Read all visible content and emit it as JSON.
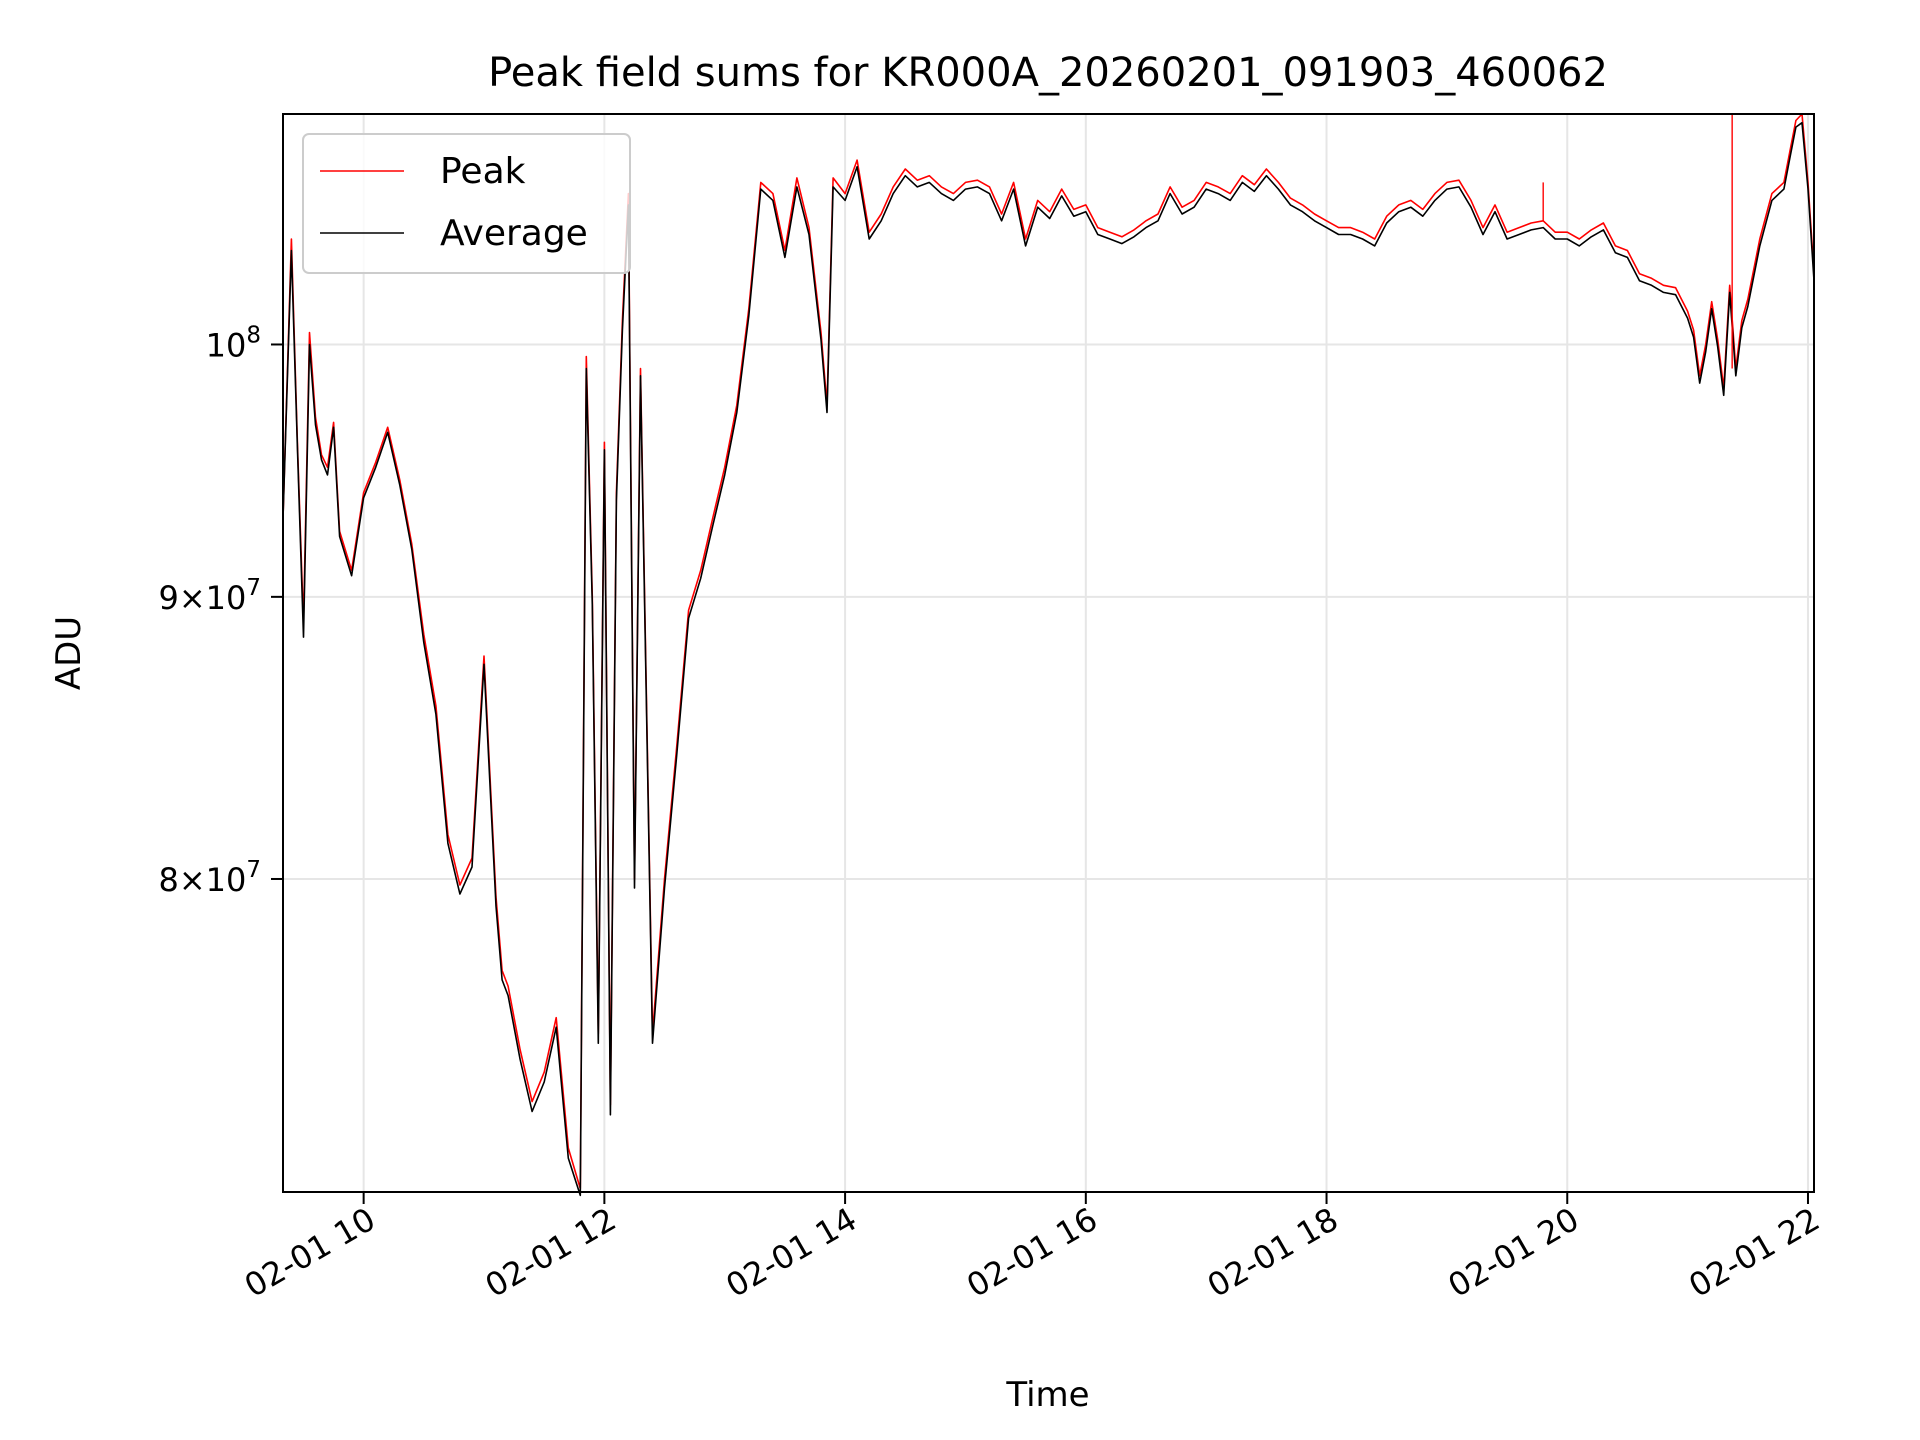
{
  "chart_data": {
    "type": "line",
    "title": "Peak field sums for KR000A_20260201_091903_460062",
    "xlabel": "Time",
    "ylabel": "ADU",
    "yscale": "log",
    "xlim_hours": [
      9.33,
      22.05
    ],
    "ylim": [
      70200000,
      110100000
    ],
    "grid": true,
    "legend_position": "upper-left",
    "x_ticks": [
      {
        "hour": 10,
        "label": "02-01 10"
      },
      {
        "hour": 12,
        "label": "02-01 12"
      },
      {
        "hour": 14,
        "label": "02-01 14"
      },
      {
        "hour": 16,
        "label": "02-01 16"
      },
      {
        "hour": 18,
        "label": "02-01 18"
      },
      {
        "hour": 20,
        "label": "02-01 20"
      },
      {
        "hour": 22,
        "label": "02-01 22"
      }
    ],
    "y_ticks": [
      {
        "value": 80000000,
        "base": "8",
        "exp": "7"
      },
      {
        "value": 90000000,
        "base": "9",
        "exp": "7"
      },
      {
        "value": 100000000,
        "base": "10",
        "exp": "8"
      }
    ],
    "x_hours": [
      9.33,
      9.4,
      9.45,
      9.5,
      9.55,
      9.6,
      9.65,
      9.7,
      9.75,
      9.8,
      9.9,
      10.0,
      10.1,
      10.2,
      10.3,
      10.4,
      10.5,
      10.6,
      10.7,
      10.8,
      10.9,
      11.0,
      11.1,
      11.15,
      11.2,
      11.3,
      11.4,
      11.5,
      11.6,
      11.7,
      11.8,
      11.85,
      11.9,
      11.95,
      12.0,
      12.05,
      12.1,
      12.15,
      12.2,
      12.25,
      12.3,
      12.4,
      12.5,
      12.6,
      12.7,
      12.8,
      12.9,
      13.0,
      13.1,
      13.2,
      13.3,
      13.4,
      13.5,
      13.6,
      13.7,
      13.8,
      13.85,
      13.9,
      14.0,
      14.1,
      14.2,
      14.3,
      14.4,
      14.5,
      14.6,
      14.7,
      14.8,
      14.9,
      15.0,
      15.1,
      15.2,
      15.3,
      15.4,
      15.5,
      15.6,
      15.7,
      15.8,
      15.9,
      16.0,
      16.1,
      16.2,
      16.3,
      16.4,
      16.5,
      16.6,
      16.7,
      16.8,
      16.9,
      17.0,
      17.1,
      17.2,
      17.3,
      17.4,
      17.5,
      17.6,
      17.7,
      17.8,
      17.9,
      18.0,
      18.1,
      18.2,
      18.3,
      18.4,
      18.5,
      18.6,
      18.7,
      18.8,
      18.9,
      19.0,
      19.1,
      19.2,
      19.3,
      19.4,
      19.5,
      19.6,
      19.7,
      19.8,
      19.9,
      20.0,
      20.1,
      20.2,
      20.3,
      20.4,
      20.5,
      20.6,
      20.7,
      20.8,
      20.9,
      21.0,
      21.05,
      21.1,
      21.15,
      21.2,
      21.25,
      21.3,
      21.35,
      21.4,
      21.45,
      21.5,
      21.6,
      21.7,
      21.8,
      21.85,
      21.9,
      21.95,
      22.0,
      22.05
    ],
    "series": [
      {
        "name": "Peak",
        "color": "#ff0000",
        "values": [
          93000000,
          104500000,
          96000000,
          89000000,
          100500000,
          97000000,
          95500000,
          95000000,
          96800000,
          92500000,
          91000000,
          94000000,
          95200000,
          96600000,
          94500000,
          92000000,
          88600000,
          86000000,
          81500000,
          79800000,
          80700000,
          87800000,
          79400000,
          77000000,
          76500000,
          74500000,
          72900000,
          73800000,
          75500000,
          71500000,
          70300000,
          99500000,
          90000000,
          75000000,
          96000000,
          72800000,
          94000000,
          101000000,
          106500000,
          80000000,
          99000000,
          75000000,
          80000000,
          84500000,
          89500000,
          91000000,
          93000000,
          95000000,
          97500000,
          101500000,
          107000000,
          106500000,
          104000000,
          107200000,
          105000000,
          100500000,
          97500000,
          107200000,
          106500000,
          108000000,
          104800000,
          105600000,
          106800000,
          107600000,
          107100000,
          107300000,
          106800000,
          106500000,
          107000000,
          107100000,
          106800000,
          105600000,
          107000000,
          104500000,
          106200000,
          105700000,
          106700000,
          105800000,
          106000000,
          105000000,
          104800000,
          104600000,
          104900000,
          105300000,
          105600000,
          106800000,
          105900000,
          106200000,
          107000000,
          106800000,
          106500000,
          107300000,
          106900000,
          107600000,
          107000000,
          106300000,
          106000000,
          105600000,
          105300000,
          105000000,
          105000000,
          104800000,
          104500000,
          105500000,
          106000000,
          106200000,
          105800000,
          106500000,
          107000000,
          107100000,
          106200000,
          105000000,
          106000000,
          104800000,
          105000000,
          105200000,
          105300000,
          104800000,
          104800000,
          104500000,
          104900000,
          105200000,
          104200000,
          104000000,
          103000000,
          102800000,
          102500000,
          102400000,
          101400000,
          100600000,
          98700000,
          100000000,
          101800000,
          100200000,
          98200000,
          102500000,
          99000000,
          101000000,
          101900000,
          104500000,
          106500000,
          107000000,
          108400000,
          109800000,
          110100000,
          107000000,
          103000000
        ]
      },
      {
        "name": "Average",
        "color": "#000000",
        "values": [
          93000000,
          104000000,
          95800000,
          88500000,
          100000000,
          96700000,
          95300000,
          94700000,
          96600000,
          92300000,
          90800000,
          93800000,
          95000000,
          96400000,
          94300000,
          91800000,
          88300000,
          85700000,
          81200000,
          79500000,
          80400000,
          87500000,
          79100000,
          76700000,
          76200000,
          74200000,
          72600000,
          73500000,
          75200000,
          71200000,
          70100000,
          99000000,
          89700000,
          74700000,
          95700000,
          72500000,
          93700000,
          100600000,
          106000000,
          79700000,
          98700000,
          74700000,
          79700000,
          84200000,
          89200000,
          90700000,
          92700000,
          94700000,
          97200000,
          101200000,
          106700000,
          106200000,
          103700000,
          106800000,
          104700000,
          100200000,
          97200000,
          106800000,
          106200000,
          107700000,
          104500000,
          105300000,
          106500000,
          107300000,
          106800000,
          107000000,
          106500000,
          106200000,
          106700000,
          106800000,
          106500000,
          105300000,
          106700000,
          104200000,
          105900000,
          105400000,
          106400000,
          105500000,
          105700000,
          104700000,
          104500000,
          104300000,
          104600000,
          105000000,
          105300000,
          106500000,
          105600000,
          105900000,
          106700000,
          106500000,
          106200000,
          107000000,
          106600000,
          107300000,
          106700000,
          106000000,
          105700000,
          105300000,
          105000000,
          104700000,
          104700000,
          104500000,
          104200000,
          105200000,
          105700000,
          105900000,
          105500000,
          106200000,
          106700000,
          106800000,
          105900000,
          104700000,
          105700000,
          104500000,
          104700000,
          104900000,
          105000000,
          104500000,
          104500000,
          104200000,
          104600000,
          104900000,
          103900000,
          103700000,
          102700000,
          102500000,
          102200000,
          102100000,
          101100000,
          100300000,
          98400000,
          99700000,
          101500000,
          99900000,
          97900000,
          102200000,
          98700000,
          100700000,
          101600000,
          104200000,
          106200000,
          106700000,
          108100000,
          109500000,
          109700000,
          106700000,
          102700000
        ]
      }
    ],
    "spikes": [
      {
        "series": "Peak",
        "hour": 19.8,
        "value": 107000000
      },
      {
        "series": "Peak",
        "hour": 21.37,
        "value": 110100000
      }
    ]
  },
  "legend": {
    "items": [
      "Peak",
      "Average"
    ]
  }
}
